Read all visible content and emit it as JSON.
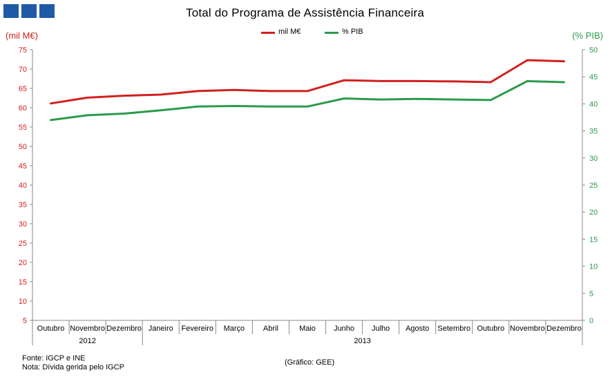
{
  "header": {
    "logo_icon": "three-blue-squares-logo",
    "title": "Total do Programa de Assistência Financeira"
  },
  "footer": {
    "source": "Fonte: IGCP e INE",
    "note": "Nota: Dívida gerida pelo IGCP",
    "credit": "(Gráfico: GEE)"
  },
  "chart_data": {
    "type": "line",
    "title": "Total do Programa de Assistência Financeira",
    "categories": [
      "Outubro",
      "Novembro",
      "Dezembro",
      "Janeiro",
      "Fevereiro",
      "Março",
      "Abril",
      "Maio",
      "Junho",
      "Julho",
      "Agosto",
      "Setembro",
      "Outubro",
      "Novembro",
      "Dezembro"
    ],
    "year_groups": [
      {
        "label": "2012",
        "span": 3
      },
      {
        "label": "2013",
        "span": 12
      }
    ],
    "y_left": {
      "label": "(mil M€)",
      "range": [
        5,
        75
      ],
      "ticks": [
        5,
        10,
        15,
        20,
        25,
        30,
        35,
        40,
        45,
        50,
        55,
        60,
        65,
        70,
        75
      ],
      "color": "#d21f1f"
    },
    "y_right": {
      "label": "(% PIB)",
      "range": [
        0,
        50
      ],
      "ticks": [
        0,
        5,
        10,
        15,
        20,
        25,
        30,
        35,
        40,
        45,
        50
      ],
      "color": "#2a9a4a"
    },
    "series": [
      {
        "name": "mil M€",
        "axis": "left",
        "color": "#d21f1f",
        "values": [
          61.1,
          62.6,
          63.1,
          63.4,
          64.3,
          64.6,
          64.3,
          64.3,
          67.1,
          66.9,
          66.9,
          66.8,
          66.6,
          72.3,
          72.0
        ]
      },
      {
        "name": "% PIB",
        "axis": "right",
        "color": "#2a9a4a",
        "values": [
          37.0,
          37.9,
          38.2,
          38.8,
          39.5,
          39.6,
          39.5,
          39.5,
          41.0,
          40.8,
          40.9,
          40.8,
          40.7,
          44.2,
          44.0
        ]
      }
    ],
    "grid": false,
    "legend_position": "top-center"
  }
}
